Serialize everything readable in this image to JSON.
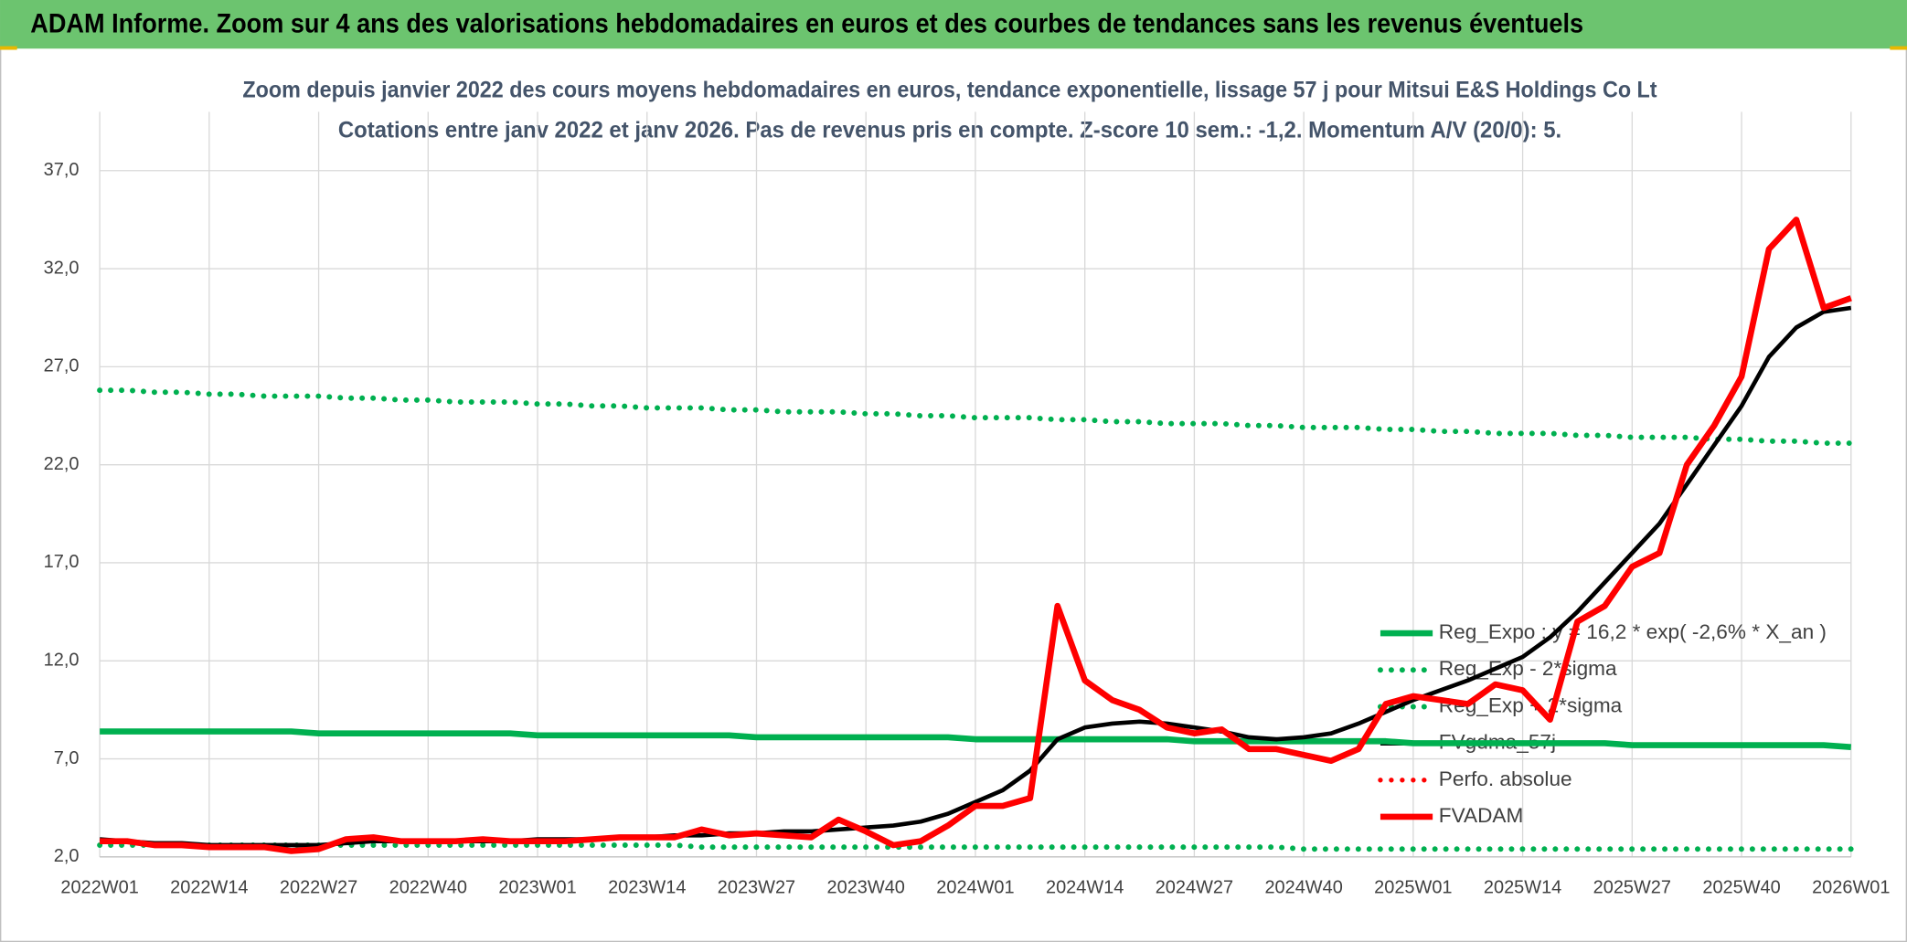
{
  "header": {
    "title": "ADAM Informe. Zoom sur 4 ans des valorisations hebdomadaires en euros et des courbes de tendances sans les revenus éventuels"
  },
  "chart_data": {
    "type": "line",
    "title": "Zoom depuis janvier 2022 des cours moyens hebdomadaires en euros, tendance exponentielle, lissage 57 j pour Mitsui E&S Holdings Co Lt",
    "subtitle": "Cotations entre janv 2022 et janv 2026. Pas de revenus pris en compte. Z-score 10 sem.: -1,2. Momentum A/V (20/0): 5.",
    "categories": [
      "2022W01",
      null,
      null,
      null,
      "2022W14",
      null,
      null,
      null,
      "2022W27",
      null,
      null,
      null,
      "2022W40",
      null,
      null,
      null,
      "2023W01",
      null,
      null,
      null,
      "2023W14",
      null,
      null,
      null,
      "2023W27",
      null,
      null,
      null,
      "2023W40",
      null,
      null,
      null,
      "2024W01",
      null,
      null,
      null,
      "2024W14",
      null,
      null,
      null,
      "2024W27",
      null,
      null,
      null,
      "2024W40",
      null,
      null,
      null,
      "2025W01",
      null,
      null,
      null,
      "2025W14",
      null,
      null,
      null,
      "2025W27",
      null,
      null,
      null,
      "2025W40",
      null,
      null,
      null,
      "2026W01"
    ],
    "ylim": [
      2,
      40
    ],
    "yticks": [
      {
        "value": 2,
        "label": "2,0"
      },
      {
        "value": 7,
        "label": "7,0"
      },
      {
        "value": 12,
        "label": "12,0"
      },
      {
        "value": 17,
        "label": "17,0"
      },
      {
        "value": 22,
        "label": "22,0"
      },
      {
        "value": 27,
        "label": "27,0"
      },
      {
        "value": 32,
        "label": "32,0"
      },
      {
        "value": 37,
        "label": "37,0"
      }
    ],
    "grid": true,
    "legend": "right",
    "series": [
      {
        "name": "Reg_Expo : y = 16,2 * exp( -2,6% *  X_an )",
        "color": "#00b050",
        "style": "solid",
        "values": [
          8.4,
          8.4,
          8.4,
          8.4,
          8.4,
          8.4,
          8.4,
          8.4,
          8.3,
          8.3,
          8.3,
          8.3,
          8.3,
          8.3,
          8.3,
          8.3,
          8.2,
          8.2,
          8.2,
          8.2,
          8.2,
          8.2,
          8.2,
          8.2,
          8.1,
          8.1,
          8.1,
          8.1,
          8.1,
          8.1,
          8.1,
          8.1,
          8.0,
          8.0,
          8.0,
          8.0,
          8.0,
          8.0,
          8.0,
          8.0,
          7.9,
          7.9,
          7.9,
          7.9,
          7.9,
          7.9,
          7.9,
          7.9,
          7.8,
          7.8,
          7.8,
          7.8,
          7.8,
          7.8,
          7.8,
          7.8,
          7.7,
          7.7,
          7.7,
          7.7,
          7.7,
          7.7,
          7.7,
          7.7,
          7.6
        ]
      },
      {
        "name": "Reg_Exp - 2*sigma",
        "color": "#00b050",
        "style": "dotted",
        "values": [
          2.6,
          2.6,
          2.6,
          2.6,
          2.6,
          2.6,
          2.6,
          2.6,
          2.6,
          2.6,
          2.6,
          2.6,
          2.6,
          2.6,
          2.6,
          2.6,
          2.6,
          2.6,
          2.6,
          2.6,
          2.6,
          2.6,
          2.5,
          2.5,
          2.5,
          2.5,
          2.5,
          2.5,
          2.5,
          2.5,
          2.5,
          2.5,
          2.5,
          2.5,
          2.5,
          2.5,
          2.5,
          2.5,
          2.5,
          2.5,
          2.5,
          2.5,
          2.5,
          2.5,
          2.4,
          2.4,
          2.4,
          2.4,
          2.4,
          2.4,
          2.4,
          2.4,
          2.4,
          2.4,
          2.4,
          2.4,
          2.4,
          2.4,
          2.4,
          2.4,
          2.4,
          2.4,
          2.4,
          2.4,
          2.4
        ]
      },
      {
        "name": "Reg_Exp + 2*sigma",
        "color": "#00b050",
        "style": "dotted",
        "values": [
          25.8,
          25.8,
          25.7,
          25.7,
          25.6,
          25.6,
          25.5,
          25.5,
          25.5,
          25.4,
          25.4,
          25.3,
          25.3,
          25.2,
          25.2,
          25.2,
          25.1,
          25.1,
          25.0,
          25.0,
          24.9,
          24.9,
          24.9,
          24.8,
          24.8,
          24.7,
          24.7,
          24.7,
          24.6,
          24.6,
          24.5,
          24.5,
          24.4,
          24.4,
          24.4,
          24.3,
          24.3,
          24.2,
          24.2,
          24.1,
          24.1,
          24.1,
          24.0,
          24.0,
          23.9,
          23.9,
          23.9,
          23.8,
          23.8,
          23.7,
          23.7,
          23.6,
          23.6,
          23.6,
          23.5,
          23.5,
          23.4,
          23.4,
          23.4,
          23.3,
          23.3,
          23.2,
          23.2,
          23.1,
          23.1
        ]
      },
      {
        "name": "FVgdma_57j",
        "color": "#000000",
        "style": "solid",
        "values": [
          2.9,
          2.8,
          2.7,
          2.7,
          2.6,
          2.6,
          2.6,
          2.6,
          2.6,
          2.7,
          2.8,
          2.8,
          2.8,
          2.8,
          2.8,
          2.8,
          2.9,
          2.9,
          2.9,
          3.0,
          3.0,
          3.1,
          3.1,
          3.2,
          3.2,
          3.3,
          3.3,
          3.4,
          3.5,
          3.6,
          3.8,
          4.2,
          4.8,
          5.4,
          6.4,
          8.0,
          8.6,
          8.8,
          8.9,
          8.8,
          8.6,
          8.4,
          8.1,
          8.0,
          8.1,
          8.3,
          8.8,
          9.4,
          10.0,
          10.5,
          11.0,
          11.6,
          12.2,
          13.2,
          14.5,
          16.0,
          17.5,
          19.0,
          21.0,
          23.0,
          25.0,
          27.5,
          29.0,
          29.8,
          30.0
        ]
      },
      {
        "name": "Perfo. absolue",
        "color": "#ff0000",
        "style": "dotted",
        "values": [
          null,
          null,
          null,
          null,
          null,
          null,
          null,
          null,
          null,
          null,
          null,
          null,
          null,
          null,
          null,
          null,
          null,
          null,
          null,
          null,
          null,
          null,
          null,
          null,
          null,
          null,
          null,
          null,
          null,
          null,
          null,
          null,
          null,
          null,
          null,
          null,
          null,
          null,
          null,
          null,
          null,
          null,
          null,
          null,
          null,
          null,
          null,
          null,
          null,
          null,
          null,
          null,
          null,
          null,
          null,
          null,
          null,
          null,
          null,
          null,
          null,
          null,
          null,
          null,
          null
        ]
      },
      {
        "name": "FVADAM",
        "color": "#ff0000",
        "style": "solid",
        "values": [
          2.8,
          2.8,
          2.6,
          2.6,
          2.5,
          2.5,
          2.5,
          2.3,
          2.4,
          2.9,
          3.0,
          2.8,
          2.8,
          2.8,
          2.9,
          2.8,
          2.8,
          2.8,
          2.9,
          3.0,
          3.0,
          3.0,
          3.4,
          3.1,
          3.2,
          3.1,
          3.0,
          3.9,
          3.3,
          2.6,
          2.8,
          3.6,
          4.6,
          4.6,
          5.0,
          14.8,
          11.0,
          10.0,
          9.5,
          8.6,
          8.3,
          8.5,
          7.5,
          7.5,
          7.2,
          6.9,
          7.5,
          9.8,
          10.2,
          10.0,
          9.8,
          10.8,
          10.5,
          9.0,
          14.0,
          14.8,
          16.8,
          17.5,
          22.0,
          24.0,
          26.5,
          33.0,
          34.5,
          30.0,
          30.5
        ]
      }
    ]
  }
}
